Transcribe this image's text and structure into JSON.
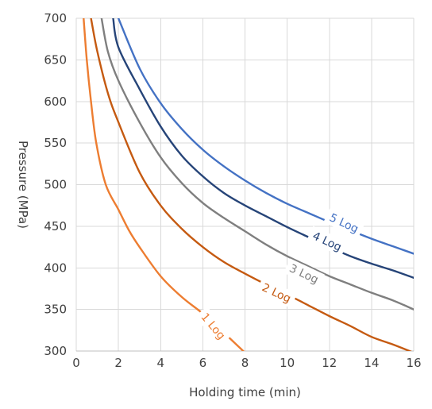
{
  "chart_data": {
    "type": "line",
    "title": "",
    "xlabel": "Holding time (min)",
    "ylabel": "Pressure (MPa)",
    "xlim": [
      0,
      16
    ],
    "ylim": [
      300,
      700
    ],
    "x_ticks": [
      "0",
      "2",
      "4",
      "6",
      "8",
      "10",
      "12",
      "14",
      "16"
    ],
    "y_ticks": [
      "300",
      "350",
      "400",
      "450",
      "500",
      "550",
      "600",
      "650",
      "700"
    ],
    "grid": true,
    "legend": "none",
    "series": [
      {
        "name": "1 Log",
        "color": "#ed7d31",
        "label_at": [
          6.5,
          330
        ],
        "label_angle": 50,
        "points": [
          [
            0.35,
            700
          ],
          [
            0.5,
            650
          ],
          [
            0.7,
            600
          ],
          [
            0.95,
            550
          ],
          [
            1.4,
            500
          ],
          [
            2,
            470
          ],
          [
            2.5,
            445
          ],
          [
            3,
            425
          ],
          [
            4,
            390
          ],
          [
            5,
            365
          ],
          [
            6,
            345
          ],
          [
            7,
            322
          ],
          [
            8,
            298
          ]
        ]
      },
      {
        "name": "2 Log",
        "color": "#c55a11",
        "label_at": [
          9.5,
          370
        ],
        "label_angle": 25,
        "points": [
          [
            0.7,
            700
          ],
          [
            1,
            660
          ],
          [
            1.5,
            610
          ],
          [
            2,
            575
          ],
          [
            3,
            515
          ],
          [
            4,
            475
          ],
          [
            5,
            447
          ],
          [
            6,
            425
          ],
          [
            7,
            407
          ],
          [
            8,
            393
          ],
          [
            9,
            380
          ],
          [
            10,
            368
          ],
          [
            11,
            355
          ],
          [
            12,
            342
          ],
          [
            13,
            330
          ],
          [
            14,
            317
          ],
          [
            15,
            308
          ],
          [
            16,
            298
          ]
        ]
      },
      {
        "name": "3 Log",
        "color": "#7f7f7f",
        "label_at": [
          10.8,
          393
        ],
        "label_angle": 25,
        "points": [
          [
            1.2,
            700
          ],
          [
            1.5,
            660
          ],
          [
            2,
            625
          ],
          [
            3,
            575
          ],
          [
            4,
            533
          ],
          [
            5,
            502
          ],
          [
            6,
            478
          ],
          [
            7,
            460
          ],
          [
            8,
            444
          ],
          [
            9,
            428
          ],
          [
            10,
            414
          ],
          [
            11,
            402
          ],
          [
            12,
            390
          ],
          [
            13,
            380
          ],
          [
            14,
            370
          ],
          [
            15,
            361
          ],
          [
            16,
            350
          ]
        ]
      },
      {
        "name": "4 Log",
        "color": "#264478",
        "label_at": [
          11.9,
          432
        ],
        "label_angle": 25,
        "points": [
          [
            1.75,
            700
          ],
          [
            2,
            665
          ],
          [
            3,
            615
          ],
          [
            4,
            570
          ],
          [
            5,
            535
          ],
          [
            6,
            510
          ],
          [
            7,
            490
          ],
          [
            8,
            475
          ],
          [
            9,
            462
          ],
          [
            10,
            449
          ],
          [
            11,
            437
          ],
          [
            12,
            425
          ],
          [
            13,
            414
          ],
          [
            14,
            405
          ],
          [
            15,
            397
          ],
          [
            16,
            388
          ]
        ]
      },
      {
        "name": "5 Log",
        "color": "#4472c4",
        "label_at": [
          12.7,
          454
        ],
        "label_angle": 25,
        "points": [
          [
            2,
            700
          ],
          [
            3,
            640
          ],
          [
            4,
            598
          ],
          [
            5,
            567
          ],
          [
            6,
            542
          ],
          [
            7,
            522
          ],
          [
            8,
            505
          ],
          [
            9,
            490
          ],
          [
            10,
            477
          ],
          [
            11,
            466
          ],
          [
            12,
            455
          ],
          [
            13,
            445
          ],
          [
            14,
            435
          ],
          [
            15,
            426
          ],
          [
            16,
            417
          ]
        ]
      }
    ]
  }
}
